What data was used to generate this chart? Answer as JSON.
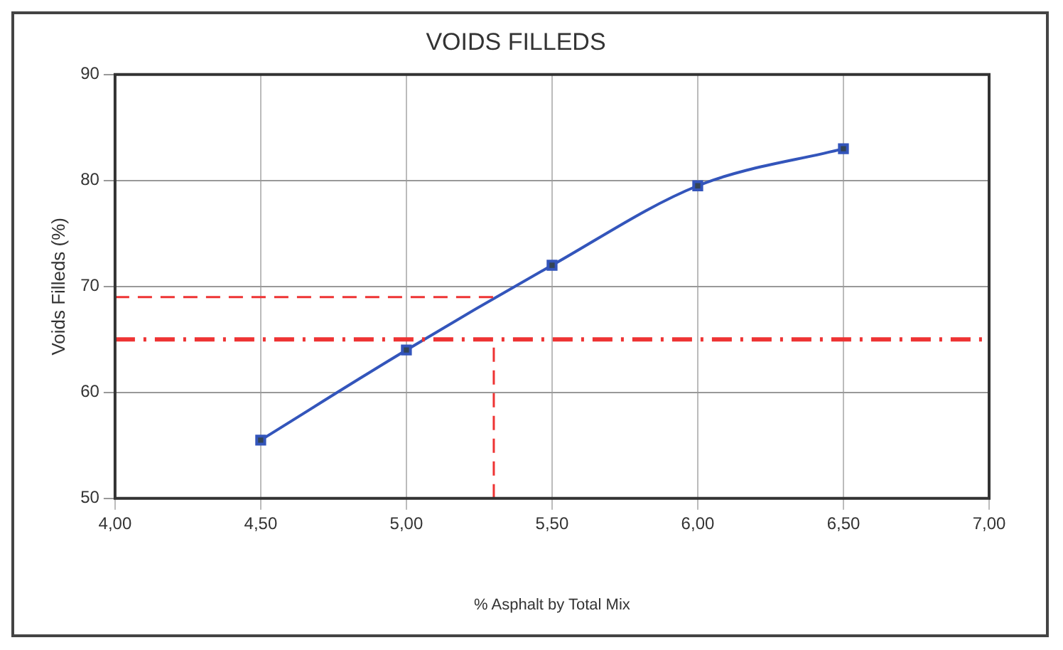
{
  "chart_data": {
    "type": "line",
    "title": "VOIDS FILLEDS",
    "xlabel": "% Asphalt by Total Mix",
    "ylabel": "Voids Filleds (%)",
    "x": [
      4.5,
      5.0,
      5.5,
      6.0,
      6.5
    ],
    "series": [
      {
        "color": "#3355bb",
        "values": [
          55.5,
          64,
          72,
          79.5,
          83
        ]
      }
    ],
    "xlim": [
      4,
      7
    ],
    "xticks": [
      {
        "value": 4,
        "label": "4,00"
      },
      {
        "value": 4.5,
        "label": "4,50"
      },
      {
        "value": 5,
        "label": "5,00"
      },
      {
        "value": 5.5,
        "label": "5,50"
      },
      {
        "value": 6,
        "label": "6,00"
      },
      {
        "value": 6.5,
        "label": "6,50"
      },
      {
        "value": 7,
        "label": "7,00"
      }
    ],
    "ylim": [
      50,
      90
    ],
    "yticks": [
      50,
      60,
      70,
      80,
      90
    ],
    "ref_lines": [
      {
        "axis": "y",
        "value": 65,
        "color": "#ee3333",
        "line_style": "dashdot"
      },
      {
        "axis": "y",
        "value": 69,
        "color": "#ee3333",
        "line_style": "dashed"
      },
      {
        "axis": "x",
        "value": 5.3,
        "color": "#ee3333",
        "line_style": "dashed"
      }
    ],
    "grid": true,
    "legend": false,
    "marker": "square",
    "line_style": "solid"
  }
}
